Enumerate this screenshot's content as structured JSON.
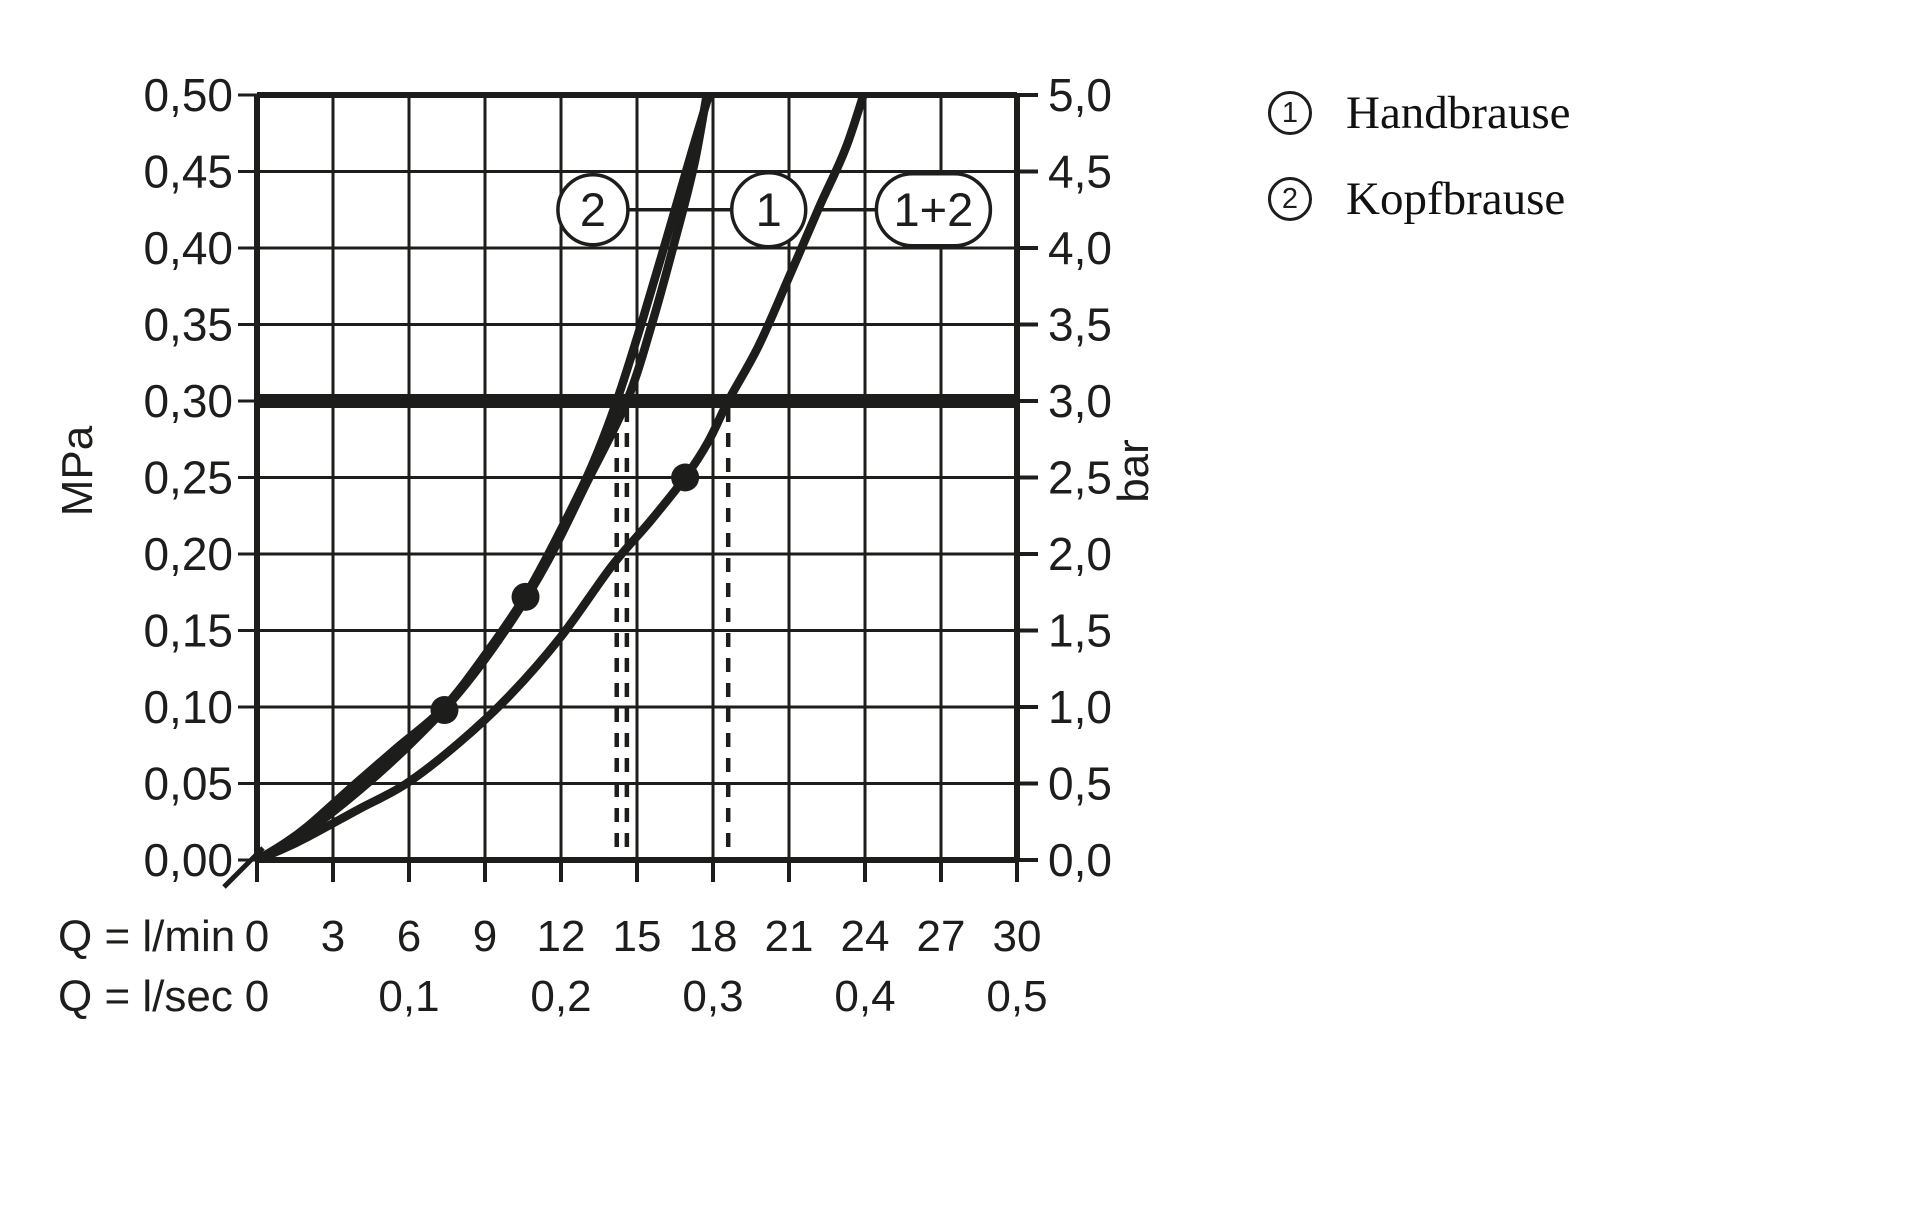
{
  "colors": {
    "ink": "#1d1d1b",
    "background": "#ffffff"
  },
  "legend": {
    "items": [
      {
        "symbol": "1",
        "label": "Handbrause"
      },
      {
        "symbol": "2",
        "label": "Kopfbrause"
      }
    ]
  },
  "chart_data": {
    "type": "line",
    "title": "",
    "x_axis": {
      "row1_label": "Q = l/min",
      "row1_ticks": [
        "0",
        "3",
        "6",
        "9",
        "12",
        "15",
        "18",
        "21",
        "24",
        "27",
        "30"
      ],
      "row2_label": "Q = l/sec",
      "row2_ticks": [
        "0",
        "0,1",
        "0,2",
        "0,3",
        "0,4",
        "0,5"
      ],
      "range_lmin": [
        0,
        30
      ],
      "grid_step_lmin": 3
    },
    "y_axis_left": {
      "label": "MPa",
      "ticks": [
        "0,50",
        "0,45",
        "0,40",
        "0,35",
        "0,30",
        "0,25",
        "0,20",
        "0,15",
        "0,10",
        "0,05",
        "0,00"
      ],
      "range_mpa": [
        0,
        0.5
      ],
      "grid_step_mpa": 0.05
    },
    "y_axis_right": {
      "label": "bar",
      "ticks": [
        "5,0",
        "4,5",
        "4,0",
        "3,5",
        "3,0",
        "2,5",
        "2,0",
        "1,5",
        "1,0",
        "0,5",
        "0,0"
      ]
    },
    "grid": "on",
    "reference_line_mpa": 0.3,
    "series": [
      {
        "id": "2",
        "legend_name": "Kopfbrause",
        "points": [
          [
            0,
            0
          ],
          [
            1,
            0.01
          ],
          [
            2,
            0.022
          ],
          [
            3.9,
            0.05
          ],
          [
            5.5,
            0.073
          ],
          [
            7.4,
            0.1
          ],
          [
            9,
            0.134
          ],
          [
            10.6,
            0.173
          ],
          [
            12,
            0.216
          ],
          [
            13.2,
            0.257
          ],
          [
            14.2,
            0.3
          ],
          [
            15.2,
            0.352
          ],
          [
            16.2,
            0.408
          ],
          [
            17.2,
            0.465
          ],
          [
            18.3,
            0.525
          ]
        ]
      },
      {
        "id": "1",
        "legend_name": "Handbrause",
        "points": [
          [
            0,
            0
          ],
          [
            1,
            0.009
          ],
          [
            2,
            0.019
          ],
          [
            4,
            0.045
          ],
          [
            6,
            0.075
          ],
          [
            8,
            0.11
          ],
          [
            10,
            0.155
          ],
          [
            11.5,
            0.196
          ],
          [
            13,
            0.246
          ],
          [
            14.6,
            0.3
          ],
          [
            15.6,
            0.351
          ],
          [
            16.5,
            0.405
          ],
          [
            17.3,
            0.458
          ],
          [
            18.0,
            0.525
          ]
        ]
      },
      {
        "id": "1+2",
        "legend_name": "Handbrause + Kopfbrause",
        "points": [
          [
            0,
            0
          ],
          [
            1,
            0.007
          ],
          [
            2,
            0.015
          ],
          [
            4,
            0.033
          ],
          [
            5.9,
            0.05
          ],
          [
            8,
            0.077
          ],
          [
            10,
            0.108
          ],
          [
            12,
            0.146
          ],
          [
            14,
            0.192
          ],
          [
            15.5,
            0.221
          ],
          [
            16.9,
            0.25
          ],
          [
            17.8,
            0.273
          ],
          [
            18.6,
            0.3
          ],
          [
            19.8,
            0.336
          ],
          [
            21,
            0.381
          ],
          [
            22.2,
            0.427
          ],
          [
            23.3,
            0.468
          ],
          [
            24.4,
            0.525
          ]
        ]
      }
    ],
    "markers": [
      {
        "q_lmin": 7.4,
        "mpa": 0.098
      },
      {
        "q_lmin": 10.6,
        "mpa": 0.172
      },
      {
        "q_lmin": 16.9,
        "mpa": 0.25
      }
    ],
    "dashed_guides": [
      {
        "q_lmin": 14.2,
        "from_mpa": 0,
        "to_mpa": 0.3
      },
      {
        "q_lmin": 14.6,
        "from_mpa": 0,
        "to_mpa": 0.3
      },
      {
        "q_lmin": 18.6,
        "from_mpa": 0,
        "to_mpa": 0.3
      }
    ],
    "curve_labels": [
      {
        "text": "2",
        "shape": "circle",
        "q_lmin": 13.26,
        "mpa": 0.425,
        "r": 35
      },
      {
        "text": "1",
        "shape": "circle",
        "q_lmin": 20.2,
        "mpa": 0.425,
        "r": 37
      },
      {
        "text": "1+2",
        "shape": "pill",
        "q_lmin": 26.7,
        "mpa": 0.425,
        "w": 114,
        "h": 72
      }
    ],
    "label_connectors": [
      {
        "mpa": 0.425,
        "from_q": 13.3,
        "to_q": 20.2
      },
      {
        "mpa": 0.425,
        "from_q": 22.3,
        "to_q": 26.7
      }
    ]
  }
}
